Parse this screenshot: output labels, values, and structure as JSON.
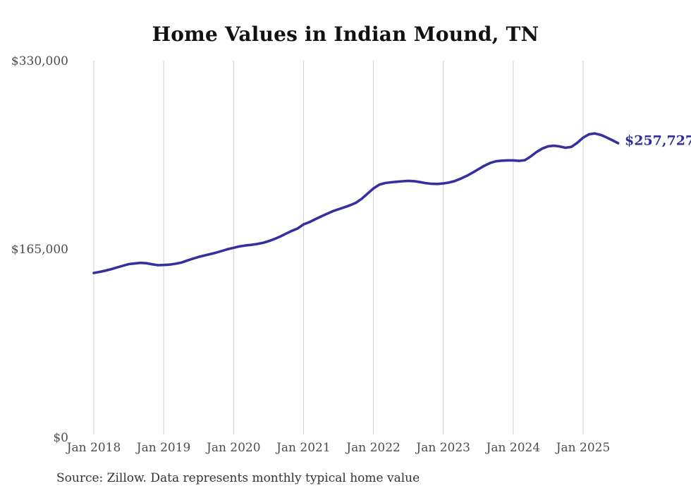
{
  "chart": {
    "title": "Home Values in Indian Mound, TN",
    "end_label": "$257,727",
    "source_note": "Source: Zillow. Data represents monthly typical home value",
    "line_color": "#36309f",
    "end_label_color": "#312c9c",
    "grid_color": "#cccccc",
    "axis_label_color": "#4d4d4d"
  },
  "chart_data": {
    "type": "line",
    "title": "Home Values in Indian Mound, TN",
    "series_name": "Monthly typical home value",
    "ylim": [
      0,
      330000
    ],
    "grid": "vertical-only",
    "legend": "none",
    "end_annotation": {
      "text": "$257,727",
      "value": 257727,
      "position": "line-end"
    },
    "y_ticks": [
      {
        "value": 0,
        "label": "$0"
      },
      {
        "value": 165000,
        "label": "$165,000"
      },
      {
        "value": 330000,
        "label": "$330,000"
      }
    ],
    "x_ticks": [
      {
        "month_index": 0,
        "label": "Jan 2018"
      },
      {
        "month_index": 12,
        "label": "Jan 2019"
      },
      {
        "month_index": 24,
        "label": "Jan 2020"
      },
      {
        "month_index": 36,
        "label": "Jan 2021"
      },
      {
        "month_index": 48,
        "label": "Jan 2022"
      },
      {
        "month_index": 60,
        "label": "Jan 2023"
      },
      {
        "month_index": 72,
        "label": "Jan 2024"
      },
      {
        "month_index": 84,
        "label": "Jan 2025"
      }
    ],
    "x": [
      "2018-01",
      "2018-02",
      "2018-03",
      "2018-04",
      "2018-05",
      "2018-06",
      "2018-07",
      "2018-08",
      "2018-09",
      "2018-10",
      "2018-11",
      "2018-12",
      "2019-01",
      "2019-02",
      "2019-03",
      "2019-04",
      "2019-05",
      "2019-06",
      "2019-07",
      "2019-08",
      "2019-09",
      "2019-10",
      "2019-11",
      "2019-12",
      "2020-01",
      "2020-02",
      "2020-03",
      "2020-04",
      "2020-05",
      "2020-06",
      "2020-07",
      "2020-08",
      "2020-09",
      "2020-10",
      "2020-11",
      "2020-12",
      "2021-01",
      "2021-02",
      "2021-03",
      "2021-04",
      "2021-05",
      "2021-06",
      "2021-07",
      "2021-08",
      "2021-09",
      "2021-10",
      "2021-11",
      "2021-12",
      "2022-01",
      "2022-02",
      "2022-03",
      "2022-04",
      "2022-05",
      "2022-06",
      "2022-07",
      "2022-08",
      "2022-09",
      "2022-10",
      "2022-11",
      "2022-12",
      "2023-01",
      "2023-02",
      "2023-03",
      "2023-04",
      "2023-05",
      "2023-06",
      "2023-07",
      "2023-08",
      "2023-09",
      "2023-10",
      "2023-11",
      "2023-12",
      "2024-01",
      "2024-02",
      "2024-03",
      "2024-04",
      "2024-05",
      "2024-06",
      "2024-07",
      "2024-08",
      "2024-09",
      "2024-10",
      "2024-11",
      "2024-12",
      "2025-01",
      "2025-02",
      "2025-03",
      "2025-04",
      "2025-05",
      "2025-06",
      "2025-07"
    ],
    "values": [
      144000,
      144900,
      146000,
      147300,
      148800,
      150300,
      151700,
      152300,
      152800,
      152500,
      151600,
      150800,
      151000,
      151300,
      152000,
      153000,
      154800,
      156500,
      158000,
      159300,
      160500,
      161800,
      163300,
      164800,
      166000,
      167200,
      168000,
      168600,
      169300,
      170300,
      171800,
      173700,
      175900,
      178400,
      180900,
      183000,
      186500,
      188500,
      191000,
      193400,
      195800,
      198000,
      199800,
      201500,
      203300,
      205500,
      209000,
      213500,
      218000,
      221300,
      222800,
      223400,
      223900,
      224300,
      224700,
      224400,
      223600,
      222700,
      222100,
      222000,
      222400,
      223200,
      224600,
      226600,
      229000,
      231800,
      234800,
      237800,
      240300,
      241800,
      242400,
      242600,
      242600,
      242200,
      242800,
      246000,
      250000,
      253000,
      255000,
      255500,
      254800,
      253700,
      254500,
      258000,
      262500,
      265500,
      266200,
      265000,
      262800,
      260300,
      257727
    ]
  }
}
